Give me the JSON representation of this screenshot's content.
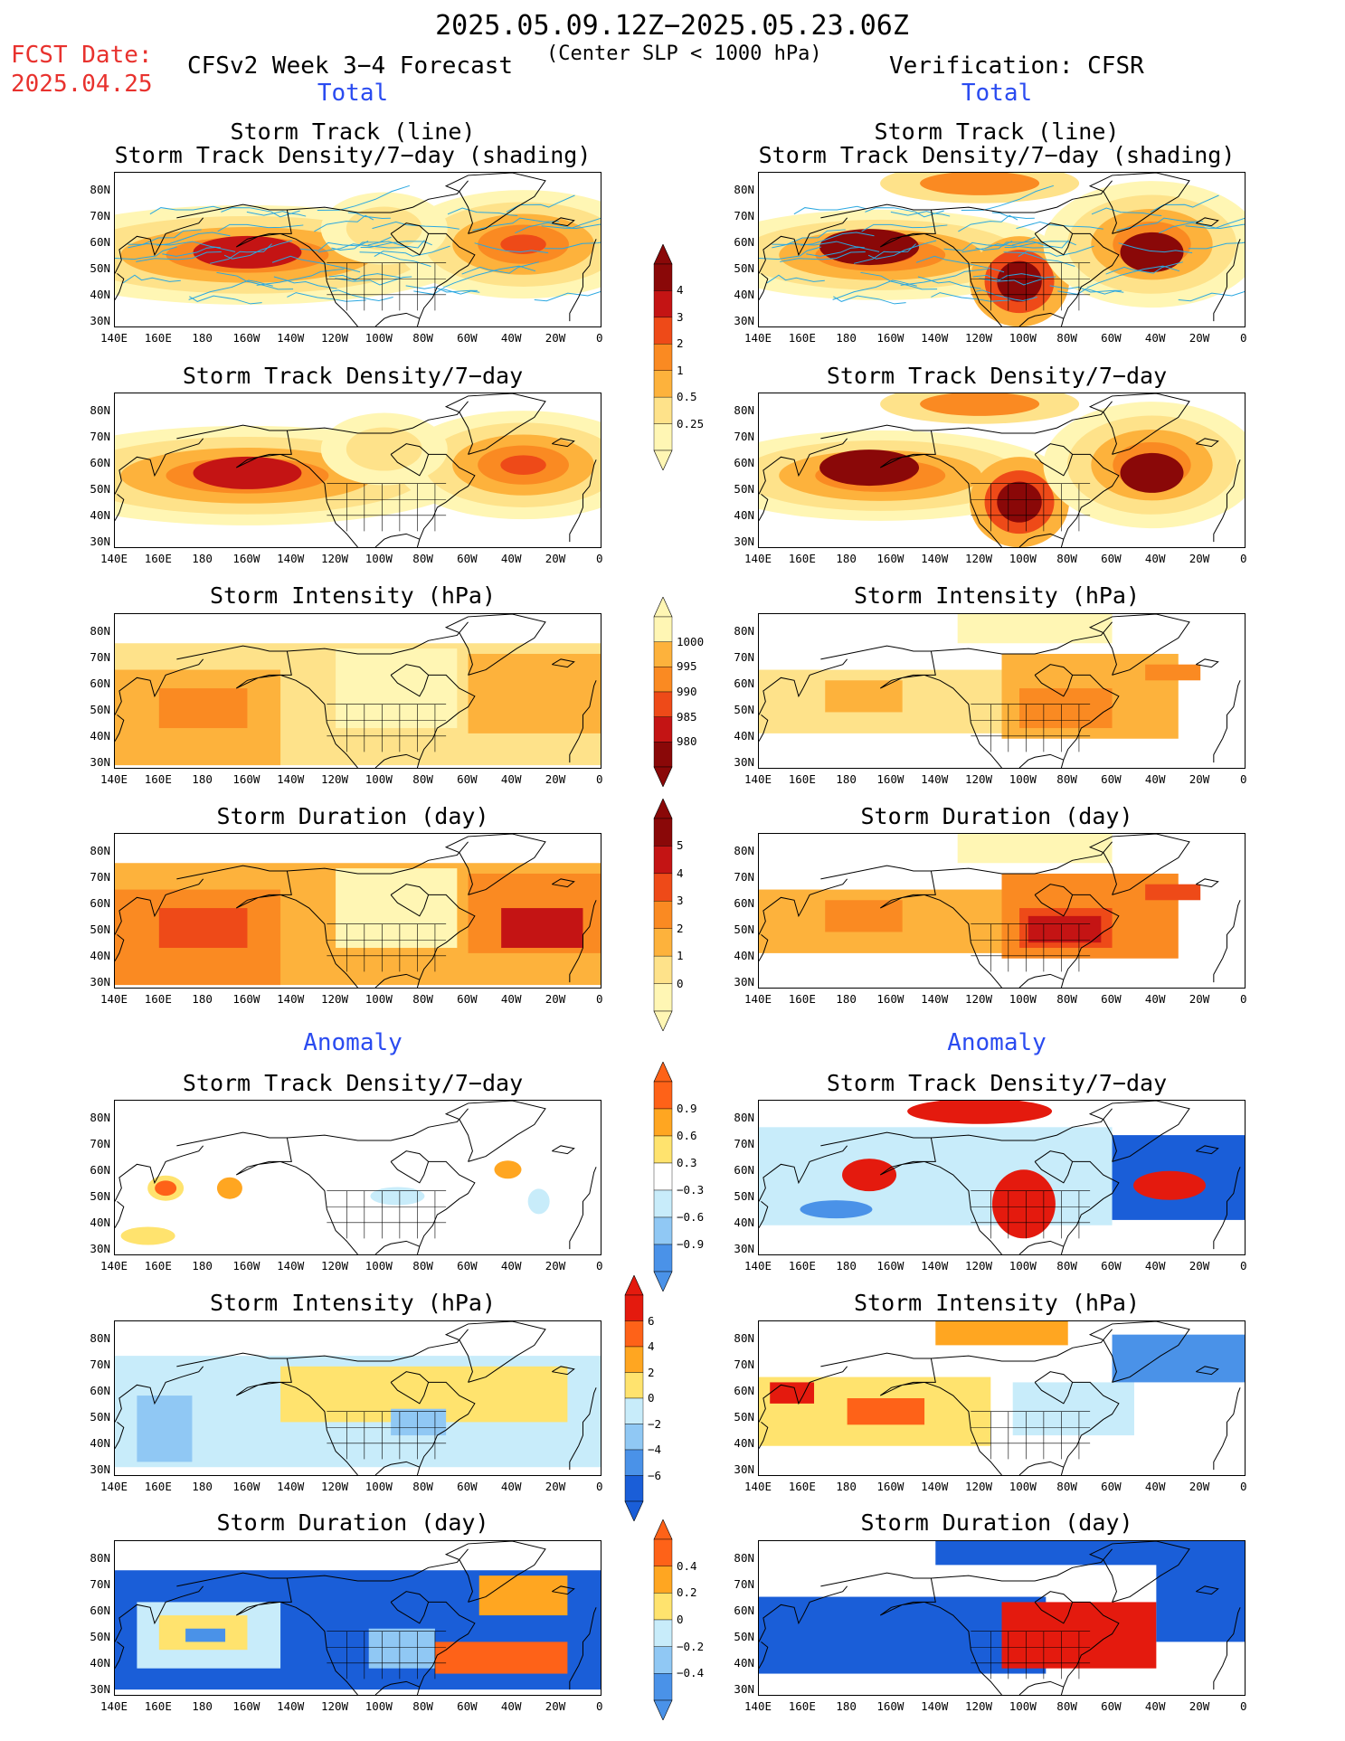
{
  "header": {
    "date_range": "2025.05.09.12Z−2025.05.23.06Z",
    "fcst_label": "FCST Date:",
    "fcst_date": "2025.04.25",
    "model": "CFSv2 Week 3−4 Forecast",
    "criterion": "(Center SLP < 1000 hPa)",
    "verification": "Verification: CFSR"
  },
  "sections": {
    "total": "Total",
    "anomaly": "Anomaly"
  },
  "panel_titles": {
    "track_line": "Storm Track (line)",
    "density_shading": "Storm Track Density/7−day (shading)",
    "density": "Storm Track Density/7−day",
    "intensity": "Storm Intensity (hPa)",
    "duration": "Storm Duration (day)"
  },
  "axes": {
    "x_ticks": [
      "140E",
      "160E",
      "180",
      "160W",
      "140W",
      "120W",
      "100W",
      "80W",
      "60W",
      "40W",
      "20W",
      "0"
    ],
    "y_ticks": [
      "80N",
      "70N",
      "60N",
      "50N",
      "40N",
      "30N"
    ]
  },
  "colorbars": {
    "density_total": [
      "4",
      "3",
      "2",
      "1",
      "0.5",
      "0.25"
    ],
    "intensity_total": [
      "1000",
      "995",
      "990",
      "985",
      "980"
    ],
    "duration_total": [
      "5",
      "4",
      "3",
      "2",
      "1",
      "0"
    ],
    "density_anom": [
      "0.9",
      "0.6",
      "0.3",
      "−0.3",
      "−0.6",
      "−0.9"
    ],
    "intensity_anom": [
      "6",
      "4",
      "2",
      "0",
      "−2",
      "−4",
      "−6"
    ],
    "duration_anom": [
      "0.4",
      "0.2",
      "0",
      "−0.2",
      "−0.4"
    ]
  },
  "colors": {
    "total_scale": [
      "#fff6b4",
      "#fee28a",
      "#fdb23c",
      "#fa8a22",
      "#ee4a18",
      "#c41414",
      "#8a0808"
    ],
    "anom_pos": [
      "#ffe36e",
      "#ffa621",
      "#fe6218",
      "#e41a0e"
    ],
    "anom_neg": [
      "#c8ecfa",
      "#90c8f4",
      "#4a92e8",
      "#1a5ed8"
    ],
    "track_line": "#2ba8e0"
  }
}
